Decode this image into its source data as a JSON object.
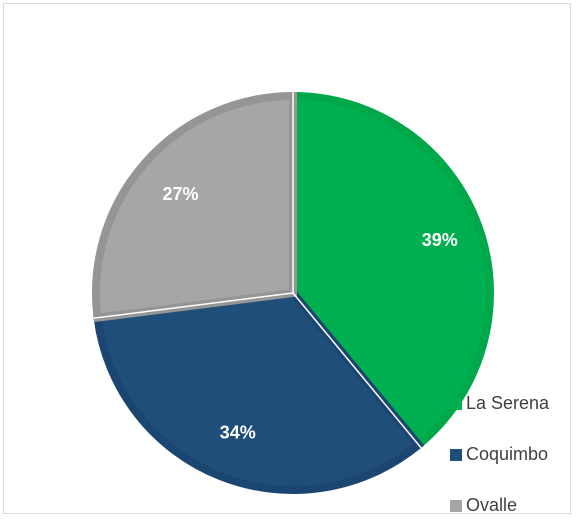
{
  "chart_data": {
    "type": "pie",
    "categories": [
      "La Serena",
      "Coquimbo",
      "Ovalle"
    ],
    "values": [
      39,
      34,
      27
    ],
    "labels": [
      "39%",
      "34%",
      "27%"
    ],
    "colors": [
      "#00b050",
      "#1f4e79",
      "#a6a6a6"
    ],
    "edge_colors": [
      "#00a84a",
      "#1c4672",
      "#959595"
    ],
    "legend_position": "right-bottom",
    "title": ""
  }
}
